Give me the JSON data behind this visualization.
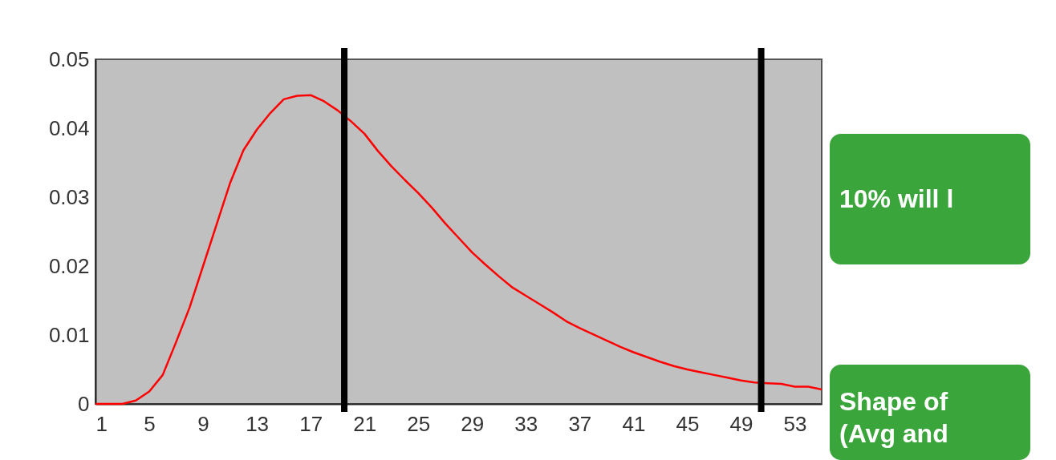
{
  "chart_data": {
    "type": "line",
    "x": [
      1,
      2,
      3,
      4,
      5,
      6,
      7,
      8,
      9,
      10,
      11,
      12,
      13,
      14,
      15,
      16,
      17,
      18,
      19,
      20,
      21,
      22,
      23,
      24,
      25,
      26,
      27,
      28,
      29,
      30,
      31,
      32,
      33,
      34,
      35,
      36,
      37,
      38,
      39,
      40,
      41,
      42,
      43,
      44,
      45,
      46,
      47,
      48,
      49,
      50,
      51,
      52,
      53,
      54,
      55
    ],
    "series": [
      {
        "color": "#ff0000",
        "values": [
          0,
          0,
          0,
          0.0005,
          0.0018,
          0.0042,
          0.009,
          0.014,
          0.02,
          0.026,
          0.032,
          0.0368,
          0.0398,
          0.0422,
          0.0442,
          0.0447,
          0.0448,
          0.0439,
          0.0426,
          0.041,
          0.0392,
          0.0367,
          0.0345,
          0.0325,
          0.0306,
          0.0285,
          0.0262,
          0.0241,
          0.022,
          0.0202,
          0.0185,
          0.0169,
          0.0157,
          0.0145,
          0.0133,
          0.012,
          0.011,
          0.0101,
          0.0092,
          0.0083,
          0.0075,
          0.0068,
          0.0061,
          0.0055,
          0.005,
          0.0046,
          0.0042,
          0.0038,
          0.0034,
          0.0031,
          0.003,
          0.0029,
          0.0025,
          0.0025,
          0.0021
        ]
      }
    ],
    "xlim": [
      1,
      55
    ],
    "xticks": [
      1,
      5,
      9,
      13,
      17,
      21,
      25,
      29,
      33,
      37,
      41,
      45,
      49,
      53
    ],
    "ylim": [
      0,
      0.05
    ],
    "yticks": [
      0,
      0.01,
      0.02,
      0.03,
      0.04,
      0.05
    ],
    "ref_lines": [
      {
        "axis": "x",
        "value": 19.5,
        "color": "#000000"
      },
      {
        "axis": "x",
        "value": 50.5,
        "color": "#000000"
      }
    ],
    "annotations": [
      "10% will l",
      "Shape of",
      "(Avg and"
    ],
    "grid": false,
    "marker": "none",
    "line_style": "solid"
  }
}
